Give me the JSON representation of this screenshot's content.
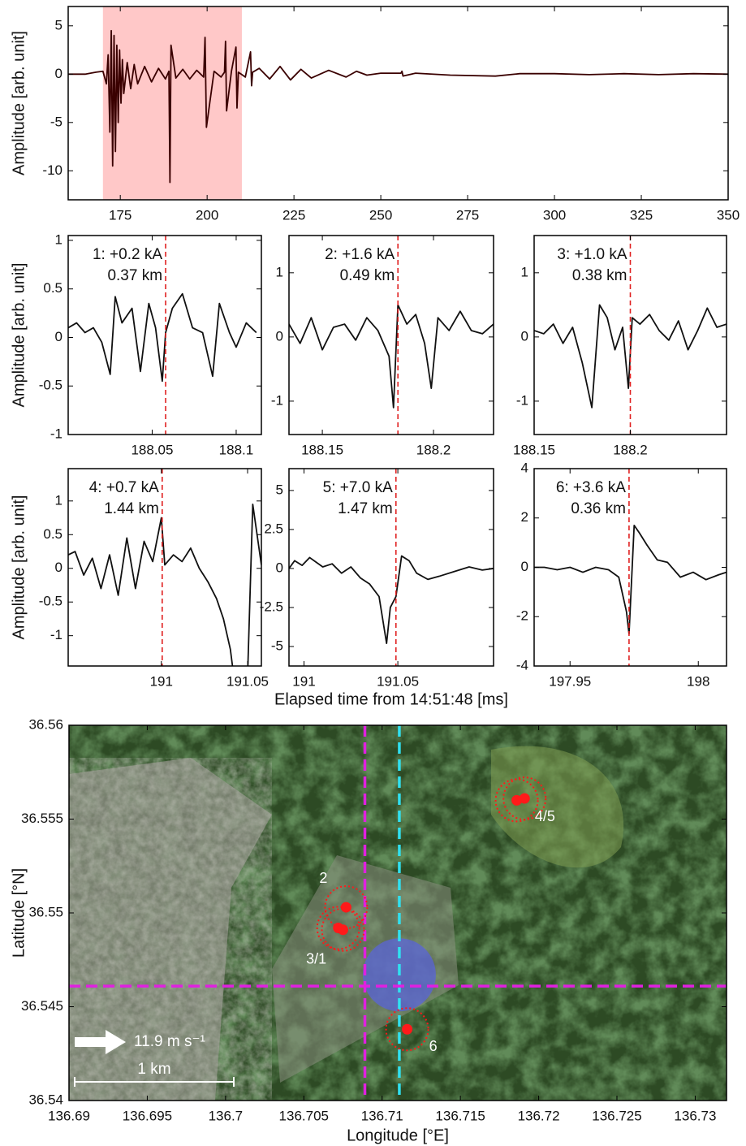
{
  "chart_data": [
    {
      "type": "line",
      "y_label": "Amplitude [arb. unit]",
      "color": "#3a0000",
      "highlight": [
        170,
        210
      ],
      "highlight_color": "#ffc8c8",
      "xlim": [
        160,
        350
      ],
      "xticks": [
        175,
        200,
        225,
        250,
        275,
        300,
        325,
        350
      ],
      "ylim": [
        -13,
        7
      ],
      "yticks": [
        -10,
        -5,
        0,
        5
      ],
      "x": [
        160,
        165,
        168,
        170,
        171,
        171.5,
        172,
        172.4,
        172.8,
        173.2,
        173.6,
        174,
        174.4,
        174.8,
        175.2,
        175.6,
        176,
        177,
        178,
        179,
        180,
        182,
        184,
        186,
        188,
        189,
        189.3,
        189.6,
        191,
        193,
        195,
        197,
        199,
        199.4,
        199.8,
        202,
        204,
        205,
        205.3,
        205.6,
        207,
        208.3,
        208.6,
        209,
        211,
        212.5,
        212.8,
        213.1,
        215,
        218,
        221,
        224,
        227,
        230,
        235,
        240,
        243,
        246,
        250,
        255.8,
        256.1,
        256.4,
        260,
        270,
        283,
        290,
        300,
        310,
        320,
        330,
        340,
        350
      ],
      "values": [
        0,
        0,
        0.2,
        0.3,
        -1,
        2,
        -6,
        4.5,
        -9.5,
        4,
        -8,
        3,
        -5,
        2.5,
        -3,
        1.5,
        -2,
        1.2,
        -1.5,
        1,
        -1,
        0.8,
        -0.8,
        0.6,
        -0.5,
        0.3,
        -11.2,
        3,
        -0.4,
        0.5,
        -0.5,
        0.4,
        -0.3,
        3.8,
        -5.5,
        0.3,
        -0.3,
        0.2,
        3.4,
        -3.8,
        0.3,
        2.8,
        -3.5,
        0.2,
        -0.3,
        2.3,
        -1.2,
        0.2,
        0.6,
        -0.5,
        0.8,
        -0.6,
        0.5,
        -0.4,
        0.4,
        -0.3,
        0.3,
        -0.1,
        0.1,
        0.1,
        0.3,
        -0.2,
        0.1,
        -0.1,
        -0.2,
        0.05,
        0.05,
        -0.05,
        0.05,
        -0.05,
        0.05,
        0
      ]
    },
    {
      "type": "line",
      "y_label": "Amplitude [arb. unit]",
      "color": "#111111",
      "annotations": [
        "1: +0.2 kA",
        "0.37 km"
      ],
      "marker": 188.058,
      "marker_color": "#e02020",
      "xlim": [
        188.0,
        188.115
      ],
      "xticks": [
        188.05,
        188.1
      ],
      "ylim": [
        -1,
        1.05
      ],
      "yticks": [
        -1,
        -0.5,
        0,
        0.5,
        1
      ],
      "x": [
        188.0,
        188.005,
        188.01,
        188.015,
        188.02,
        188.025,
        188.028,
        188.032,
        188.038,
        188.043,
        188.048,
        188.052,
        188.056,
        188.058,
        188.062,
        188.068,
        188.074,
        188.08,
        188.086,
        188.09,
        188.096,
        188.1,
        188.106,
        188.112
      ],
      "values": [
        0.1,
        0.15,
        0.05,
        0.1,
        -0.05,
        -0.38,
        0.42,
        0.15,
        0.3,
        -0.35,
        0.35,
        0.1,
        -0.45,
        0.05,
        0.3,
        0.45,
        0.1,
        0.05,
        -0.4,
        0.35,
        0.05,
        -0.1,
        0.15,
        0.05
      ]
    },
    {
      "type": "line",
      "color": "#111111",
      "annotations": [
        "2: +1.6 kA",
        "0.49 km"
      ],
      "marker": 188.184,
      "marker_color": "#e02020",
      "xlim": [
        188.135,
        188.227
      ],
      "xticks": [
        188.15,
        188.2
      ],
      "ylim": [
        -1.52,
        1.58
      ],
      "yticks": [
        -1,
        0,
        1
      ],
      "x": [
        188.135,
        188.14,
        188.145,
        188.15,
        188.155,
        188.16,
        188.165,
        188.17,
        188.175,
        188.18,
        188.182,
        188.184,
        188.188,
        188.192,
        188.196,
        188.199,
        188.202,
        188.207,
        188.212,
        188.217,
        188.222,
        188.227
      ],
      "values": [
        0.2,
        -0.1,
        0.3,
        -0.2,
        0.15,
        0.2,
        -0.05,
        0.3,
        0.1,
        -0.3,
        -1.1,
        0.5,
        0.2,
        0.35,
        -0.1,
        -0.8,
        0.3,
        0.1,
        0.4,
        0.1,
        0.05,
        0.2
      ]
    },
    {
      "type": "line",
      "color": "#111111",
      "annotations": [
        "3: +1.0 kA",
        "0.38 km"
      ],
      "marker": 188.2,
      "marker_color": "#e02020",
      "xlim": [
        188.15,
        188.25
      ],
      "xticks": [
        188.15,
        188.2
      ],
      "ylim": [
        -1.52,
        1.58
      ],
      "yticks": [
        -1,
        0,
        1
      ],
      "x": [
        188.15,
        188.155,
        188.16,
        188.165,
        188.17,
        188.175,
        188.18,
        188.184,
        188.188,
        188.192,
        188.196,
        188.199,
        188.201,
        188.205,
        188.21,
        188.215,
        188.22,
        188.225,
        188.23,
        188.235,
        188.24,
        188.245,
        188.25
      ],
      "values": [
        0.1,
        0.05,
        0.2,
        -0.1,
        0.15,
        -0.4,
        -1.1,
        0.5,
        0.3,
        -0.2,
        0.15,
        -0.8,
        0.3,
        0.2,
        0.35,
        0.1,
        -0.05,
        0.25,
        -0.2,
        0.1,
        0.45,
        0.15,
        0.2
      ]
    },
    {
      "type": "line",
      "y_label": "Amplitude [arb. unit]",
      "color": "#111111",
      "annotations": [
        "4: +0.7 kA",
        "1.44 km"
      ],
      "marker": 191.0005,
      "marker_color": "#e02020",
      "xlim": [
        190.946,
        191.058
      ],
      "xticks": [
        191,
        191.05
      ],
      "ylim": [
        -1.45,
        1.48
      ],
      "yticks": [
        -1,
        -0.5,
        0,
        0.5,
        1
      ],
      "x": [
        190.946,
        190.95,
        190.955,
        190.96,
        190.965,
        190.97,
        190.975,
        190.98,
        190.985,
        190.99,
        190.995,
        191.0,
        191.002,
        191.007,
        191.012,
        191.017,
        191.022,
        191.027,
        191.032,
        191.036,
        191.04,
        191.042,
        191.046,
        191.05,
        191.053,
        191.058
      ],
      "values": [
        0.2,
        0.25,
        -0.1,
        0.15,
        -0.3,
        0.2,
        -0.4,
        0.45,
        -0.3,
        0.4,
        0.1,
        0.75,
        0.05,
        0.2,
        0.1,
        0.3,
        0.0,
        -0.2,
        -0.45,
        -0.75,
        -1.2,
        -1.6,
        null,
        -1.6,
        0.95,
        0.05
      ]
    },
    {
      "type": "line",
      "x_label": "Elapsed time from 14:51:48 [ms]",
      "color": "#111111",
      "annotations": [
        "5: +7.0 kA",
        "1.47 km"
      ],
      "marker": 191.049,
      "marker_color": "#e02020",
      "xlim": [
        190.992,
        191.101
      ],
      "xticks": [
        191,
        191.05
      ],
      "ylim": [
        -6.25,
        6.4
      ],
      "yticks": [
        -5,
        -2.5,
        0,
        2.5,
        5
      ],
      "x": [
        190.992,
        190.995,
        190.999,
        191.003,
        191.01,
        191.015,
        191.02,
        191.025,
        191.03,
        191.035,
        191.04,
        191.044,
        191.046,
        191.049,
        191.052,
        191.056,
        191.06,
        191.066,
        191.072,
        191.08,
        191.088,
        191.095,
        191.101
      ],
      "values": [
        0,
        0.5,
        0.2,
        0.7,
        0.1,
        0.3,
        -0.3,
        0.1,
        -0.6,
        -1.0,
        -1.8,
        -4.8,
        -2.5,
        -1.8,
        0.8,
        0.5,
        -0.3,
        -0.7,
        -0.5,
        -0.2,
        0.1,
        -0.1,
        0
      ]
    },
    {
      "type": "line",
      "color": "#111111",
      "annotations": [
        "6: +3.6 kA",
        "0.36 km"
      ],
      "marker": 197.973,
      "marker_color": "#e02020",
      "xlim": [
        197.936,
        198.011
      ],
      "xticks": [
        197.95,
        198
      ],
      "ylim": [
        -4,
        4
      ],
      "yticks": [
        -4,
        -2,
        0,
        2,
        4
      ],
      "x": [
        197.936,
        197.94,
        197.945,
        197.95,
        197.955,
        197.96,
        197.965,
        197.969,
        197.972,
        197.973,
        197.975,
        197.977,
        197.98,
        197.984,
        197.988,
        197.993,
        197.998,
        198.003,
        198.008,
        198.011
      ],
      "values": [
        0,
        0,
        -0.1,
        0,
        -0.2,
        0,
        -0.1,
        -0.4,
        -1.8,
        -2.7,
        1.7,
        1.4,
        0.9,
        0.3,
        0.2,
        -0.4,
        -0.2,
        -0.5,
        -0.3,
        -0.2
      ]
    },
    {
      "type": "scatter",
      "x_label": "Longitude [°E]",
      "y_label": "Latitude [°N]",
      "color": "#ff1a1a",
      "xlim": [
        136.69,
        136.732
      ],
      "xticks": [
        136.69,
        136.695,
        136.7,
        136.705,
        136.71,
        136.715,
        136.72,
        136.725,
        136.73
      ],
      "ylim": [
        36.54,
        36.56
      ],
      "yticks": [
        36.54,
        36.545,
        36.55,
        36.555,
        36.56
      ],
      "groups": [
        {
          "label": "4/5",
          "x": [
            136.7186,
            136.7191
          ],
          "y": [
            36.556,
            36.5561
          ]
        },
        {
          "label": "2",
          "x": [
            136.7077
          ],
          "y": [
            36.5503
          ]
        },
        {
          "label": "3/1",
          "x": [
            136.7072,
            136.7075
          ],
          "y": [
            36.5492,
            36.5491
          ]
        },
        {
          "label": "6",
          "x": [
            136.7116
          ],
          "y": [
            36.5438
          ]
        }
      ],
      "v_lines": [
        {
          "x": 136.7089,
          "color": "#e020e0"
        },
        {
          "x": 136.7111,
          "color": "#30e0f0"
        }
      ],
      "h_lines": [
        {
          "y": 36.5461,
          "color": "#e020e0"
        }
      ],
      "blue_circle": {
        "x": 136.7111,
        "y": 36.5467,
        "color": "#5a64d8"
      },
      "wind_label": "11.9 m s⁻¹",
      "scale_label": "1 km"
    }
  ]
}
